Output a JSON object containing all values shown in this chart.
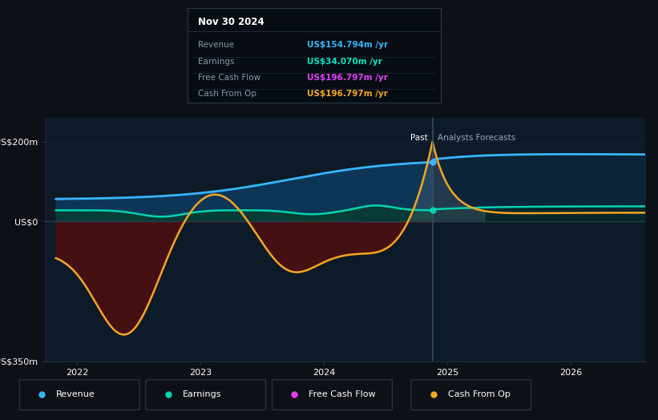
{
  "bg_color": "#0d1117",
  "plot_bg_color": "#0d1a27",
  "tooltip": {
    "date": "Nov 30 2024",
    "rows": [
      {
        "label": "Revenue",
        "value": "US$154.794m /yr",
        "color": "#38b6ff"
      },
      {
        "label": "Earnings",
        "value": "US$34.070m /yr",
        "color": "#00e5c8"
      },
      {
        "label": "Free Cash Flow",
        "value": "US$196.797m /yr",
        "color": "#e040fb"
      },
      {
        "label": "Cash From Op",
        "value": "US$196.797m /yr",
        "color": "#f5a623"
      }
    ]
  },
  "xlim": [
    2021.75,
    2026.6
  ],
  "ylim": [
    -350,
    260
  ],
  "past_x": 2024.88,
  "revenue_color": "#38b6ff",
  "revenue_fill_past": "#0d3a5c",
  "revenue_fill_future": "#0a2840",
  "earnings_color": "#00d4b0",
  "earnings_fill_past": "#083d30",
  "earnings_fill_future": "#072a22",
  "fcf_color": "#e040fb",
  "cashop_color": "#f5a623",
  "cashop_fill_neg": "#4a1010",
  "grid_color": "#1a2535",
  "past_label": "Past",
  "forecast_label": "Analysts Forecasts",
  "legend_labels": [
    "Revenue",
    "Earnings",
    "Free Cash Flow",
    "Cash From Op"
  ],
  "legend_colors": [
    "#38b6ff",
    "#00d4b0",
    "#e040fb",
    "#f5a623"
  ]
}
